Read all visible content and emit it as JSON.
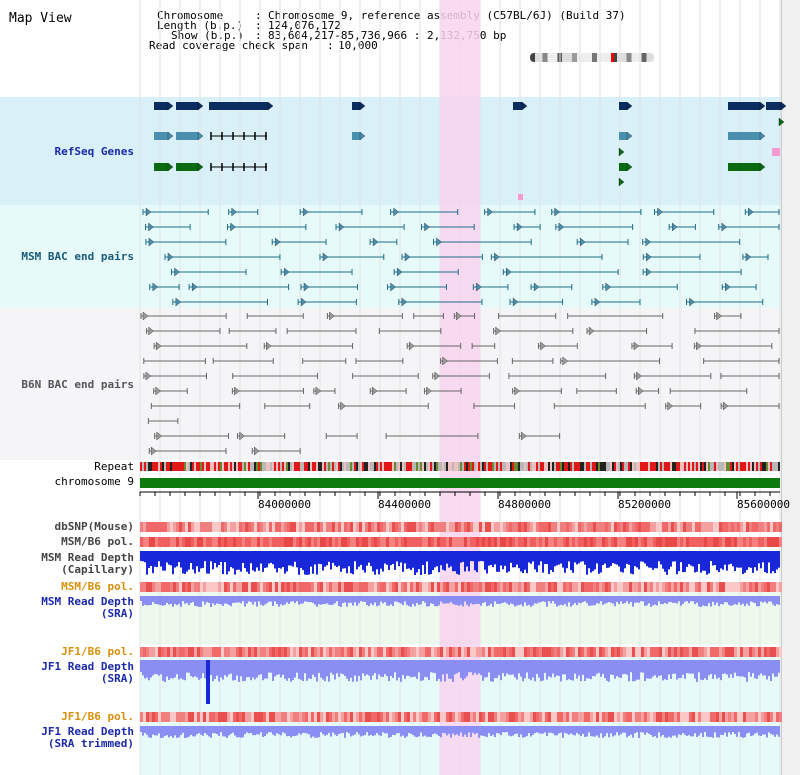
{
  "window": {
    "title": "Map View"
  },
  "header": {
    "chromosome_label": "Chromosome",
    "chromosome_value": "Chromosome 9, reference assembly (C57BL/6J) (Build 37)",
    "length_label": "Length (b.p.)",
    "length_value": "124,076,172",
    "show_label": "Show (b.p.)",
    "show_value": "83,604,217-85,736,966 : 2,132,750 bp",
    "coverage_label": "Read coverage check span",
    "coverage_value": "10,000"
  },
  "tracks": {
    "refseq": "RefSeq Genes",
    "msm_bac": "MSM BAC end pairs",
    "b6n_bac": "B6N BAC end pairs",
    "repeat": "Repeat",
    "chromosome": "chromosome 9",
    "dbsnp": "dbSNP(Mouse)",
    "msm_b6_pol_1": "MSM/B6 pol.",
    "msm_depth_cap_1": "MSM Read Depth",
    "msm_depth_cap_2": "(Capillary)",
    "msm_b6_pol_2": "MSM/B6 pol.",
    "msm_depth_sra_1": "MSM Read Depth",
    "msm_depth_sra_2": "(SRA)",
    "jf1_b6_pol_1": "JF1/B6 pol.",
    "jf1_depth_sra_1": "JF1 Read Depth",
    "jf1_depth_sra_2": "(SRA)",
    "jf1_b6_pol_2": "JF1/B6 pol.",
    "jf1_depth_trim_1": "JF1 Read Depth",
    "jf1_depth_trim_2": "(SRA trimmed)"
  },
  "axis": {
    "ticks": [
      "84000000",
      "84400000",
      "84800000",
      "85200000",
      "85600000"
    ]
  },
  "colors": {
    "refseq_bg": "#d9f0f8",
    "msm_bg": "#e6fafa",
    "b6n_bg": "#f5f5f8",
    "highlight": "#f7d3ee",
    "gene_navy": "#0b2c5e",
    "gene_teal": "#4a8fae",
    "gene_green": "#0a6a12",
    "msm_line": "#1d6e88",
    "b6n_line": "#666666",
    "chromosome": "#0c7a0c",
    "depth_blue": "#1828d8",
    "depth_light": "#8a8ef2",
    "label_blue": "#1a2aa8",
    "label_teal": "#1a5a7a",
    "label_orange": "#d8900a"
  }
}
